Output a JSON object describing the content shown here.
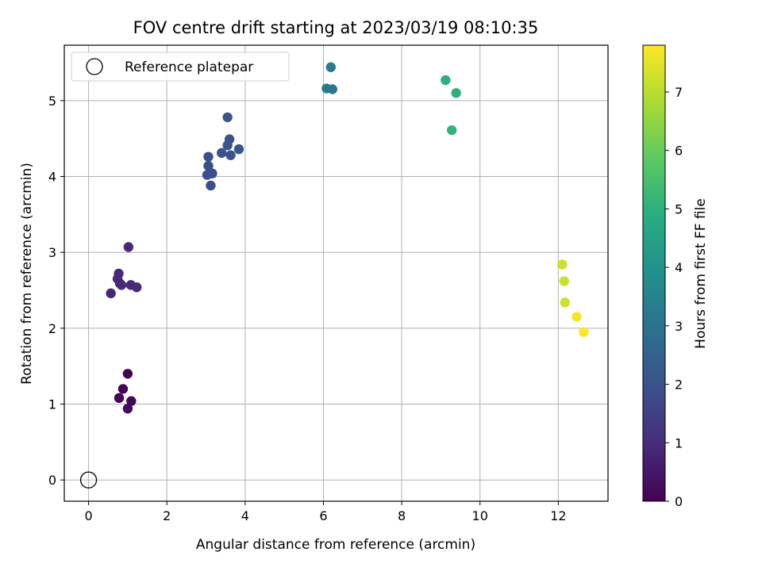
{
  "chart_data": {
    "type": "scatter",
    "title": "FOV centre drift starting at 2023/03/19 08:10:35",
    "xlabel": "Angular distance from reference (arcmin)",
    "ylabel": "Rotation from reference (arcmin)",
    "xlim": [
      -0.62,
      13.27
    ],
    "ylim": [
      -0.28,
      5.73
    ],
    "xticks": [
      0,
      2,
      4,
      6,
      8,
      10,
      12
    ],
    "yticks": [
      0,
      1,
      2,
      3,
      4,
      5
    ],
    "grid": true,
    "legend": {
      "placement": "upper-left",
      "entries": [
        {
          "label": "Reference platepar",
          "marker": "open-circle"
        }
      ]
    },
    "reference_point": {
      "x": 0,
      "y": 0,
      "label": "Reference platepar"
    },
    "colorbar": {
      "label": "Hours from first FF file",
      "colormap": "viridis",
      "range": [
        0,
        7.8
      ],
      "ticks": [
        0,
        1,
        2,
        3,
        4,
        5,
        6,
        7
      ]
    },
    "points": [
      {
        "x": 1.0,
        "y": 1.4,
        "c": 0.0
      },
      {
        "x": 0.88,
        "y": 1.2,
        "c": 0.05
      },
      {
        "x": 0.78,
        "y": 1.08,
        "c": 0.1
      },
      {
        "x": 1.09,
        "y": 1.04,
        "c": 0.15
      },
      {
        "x": 1.0,
        "y": 0.94,
        "c": 0.2
      },
      {
        "x": 1.02,
        "y": 3.07,
        "c": 0.9
      },
      {
        "x": 0.77,
        "y": 2.72,
        "c": 0.9
      },
      {
        "x": 0.74,
        "y": 2.65,
        "c": 0.9
      },
      {
        "x": 0.8,
        "y": 2.59,
        "c": 0.9
      },
      {
        "x": 0.84,
        "y": 2.57,
        "c": 0.9
      },
      {
        "x": 1.08,
        "y": 2.57,
        "c": 0.95
      },
      {
        "x": 1.23,
        "y": 2.54,
        "c": 0.95
      },
      {
        "x": 0.57,
        "y": 2.46,
        "c": 0.85
      },
      {
        "x": 3.55,
        "y": 4.78,
        "c": 2.1
      },
      {
        "x": 3.6,
        "y": 4.49,
        "c": 2.0
      },
      {
        "x": 3.55,
        "y": 4.41,
        "c": 2.0
      },
      {
        "x": 3.84,
        "y": 4.36,
        "c": 2.0
      },
      {
        "x": 3.4,
        "y": 4.31,
        "c": 2.0
      },
      {
        "x": 3.63,
        "y": 4.28,
        "c": 2.0
      },
      {
        "x": 3.06,
        "y": 4.26,
        "c": 1.9
      },
      {
        "x": 3.06,
        "y": 4.14,
        "c": 1.9
      },
      {
        "x": 3.16,
        "y": 4.04,
        "c": 1.9
      },
      {
        "x": 3.03,
        "y": 4.02,
        "c": 1.9
      },
      {
        "x": 3.12,
        "y": 3.88,
        "c": 1.9
      },
      {
        "x": 6.19,
        "y": 5.44,
        "c": 3.2
      },
      {
        "x": 6.08,
        "y": 5.16,
        "c": 3.2
      },
      {
        "x": 6.23,
        "y": 5.15,
        "c": 3.2
      },
      {
        "x": 9.12,
        "y": 5.27,
        "c": 5.0
      },
      {
        "x": 9.39,
        "y": 5.1,
        "c": 5.0
      },
      {
        "x": 9.28,
        "y": 4.61,
        "c": 5.1
      },
      {
        "x": 12.1,
        "y": 2.84,
        "c": 7.2
      },
      {
        "x": 12.15,
        "y": 2.62,
        "c": 7.2
      },
      {
        "x": 12.17,
        "y": 2.34,
        "c": 7.25
      },
      {
        "x": 12.47,
        "y": 2.15,
        "c": 7.7
      },
      {
        "x": 12.65,
        "y": 1.95,
        "c": 7.8
      }
    ]
  }
}
